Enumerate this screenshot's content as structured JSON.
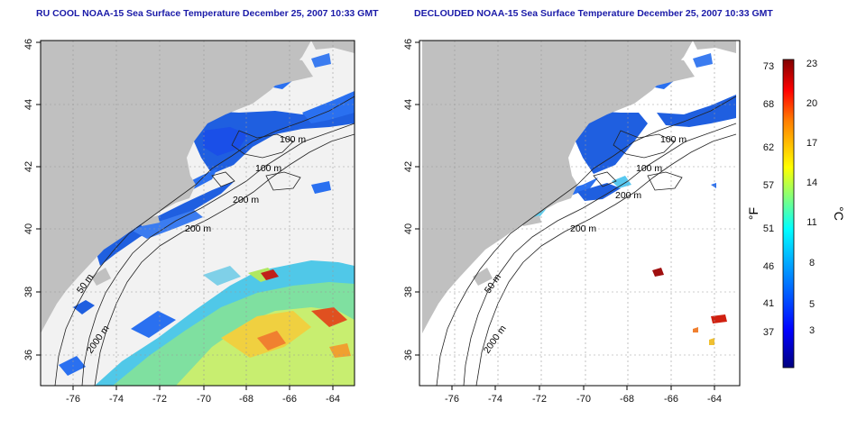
{
  "left_panel": {
    "title": "RU COOL NOAA-15 Sea Surface Temperature December 25, 2007 10:33 GMT"
  },
  "right_panel": {
    "title": "DECLOUDED NOAA-15 Sea Surface Temperature December 25, 2007 10:33 GMT"
  },
  "map_axes": {
    "x_ticks": [
      "-76",
      "-74",
      "-72",
      "-70",
      "-68",
      "-66",
      "-64"
    ],
    "y_ticks": [
      "36",
      "38",
      "40",
      "42",
      "44",
      "46"
    ],
    "lon_range": [
      -77,
      -63
    ],
    "lat_range": [
      35,
      46
    ],
    "grid": "dotted"
  },
  "contour_labels": {
    "left": [
      "100 m",
      "100 m",
      "200 m",
      "200 m",
      "50 m",
      "2000 m"
    ],
    "right": [
      "100 m",
      "100 m",
      "200 m",
      "200 m",
      "50 m",
      "2000 m"
    ]
  },
  "colorbar": {
    "unit_f": "°F",
    "unit_c": "°C",
    "f_ticks": [
      "73",
      "68",
      "62",
      "57",
      "51",
      "46",
      "41",
      "37"
    ],
    "c_ticks": [
      "23",
      "20",
      "17",
      "14",
      "11",
      "8",
      "5",
      "3"
    ],
    "colors": [
      "#00007f",
      "#0000ff",
      "#007fff",
      "#00ffff",
      "#7fff7f",
      "#ffff00",
      "#ff7f00",
      "#ff0000",
      "#7f0000"
    ]
  },
  "colors": {
    "land": "#c0c0c0",
    "cloud": "#f2f2f2",
    "title": "#1a1aa8"
  }
}
